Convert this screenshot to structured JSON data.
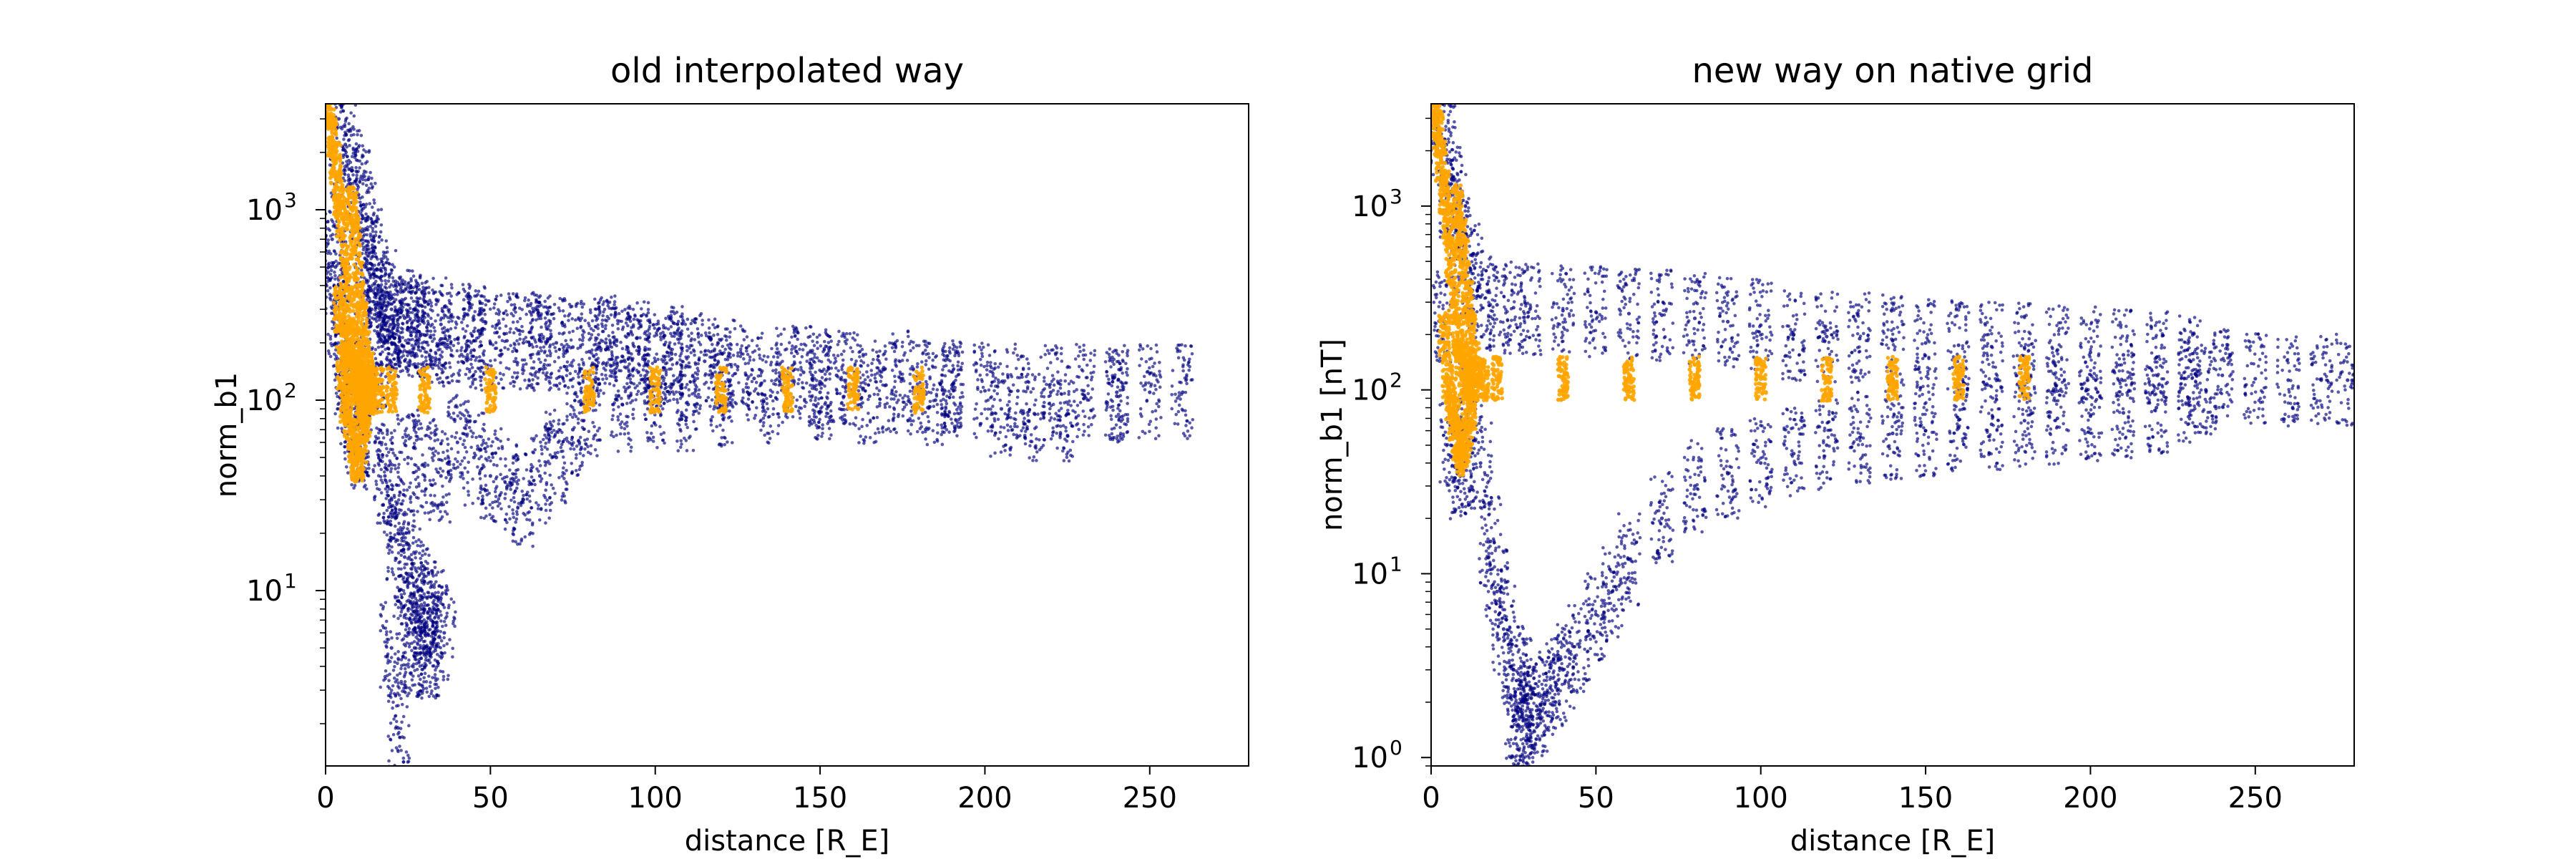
{
  "chart_data": [
    {
      "type": "scatter",
      "title": "old interpolated way",
      "xlabel": "distance [R_E]",
      "ylabel": "norm_b1",
      "xlim": [
        0,
        280
      ],
      "ylim": [
        1.2,
        3600
      ],
      "yscale": "log",
      "x_ticks": [
        0,
        50,
        100,
        150,
        200,
        250
      ],
      "y_ticks": [
        {
          "base": "10",
          "exp": "1",
          "value": 10
        },
        {
          "base": "10",
          "exp": "2",
          "value": 100
        },
        {
          "base": "10",
          "exp": "3",
          "value": 1000
        }
      ],
      "grid": false,
      "legend": "none",
      "series": [
        {
          "color": "#000080",
          "marker": "small dots",
          "points": [
            [
              2,
              700
            ],
            [
              3,
              500
            ],
            [
              4,
              300
            ],
            [
              5,
              200
            ],
            [
              6,
              150
            ],
            [
              7,
              120
            ],
            [
              8,
              90
            ],
            [
              9,
              70
            ],
            [
              10,
              60
            ],
            [
              12,
              500
            ],
            [
              14,
              300
            ],
            [
              16,
              220
            ],
            [
              18,
              200
            ],
            [
              20,
              230
            ],
            [
              22,
              250
            ],
            [
              25,
              240
            ],
            [
              28,
              230
            ],
            [
              30,
              220
            ],
            [
              35,
              210
            ],
            [
              40,
              210
            ],
            [
              45,
              205
            ],
            [
              50,
              200
            ],
            [
              55,
              205
            ],
            [
              60,
              200
            ],
            [
              65,
              205
            ],
            [
              70,
              200
            ],
            [
              75,
              190
            ],
            [
              80,
              180
            ],
            [
              85,
              185
            ],
            [
              90,
              170
            ],
            [
              95,
              175
            ],
            [
              100,
              160
            ],
            [
              105,
              165
            ],
            [
              110,
              150
            ],
            [
              120,
              140
            ],
            [
              130,
              130
            ],
            [
              140,
              135
            ],
            [
              150,
              125
            ],
            [
              160,
              130
            ],
            [
              170,
              120
            ],
            [
              180,
              118
            ],
            [
              190,
              115
            ],
            [
              200,
              112
            ],
            [
              210,
              112
            ],
            [
              220,
              110
            ],
            [
              230,
              112
            ],
            [
              240,
              110
            ],
            [
              250,
              110
            ],
            [
              260,
              110
            ],
            [
              15,
              60
            ],
            [
              18,
              40
            ],
            [
              20,
              30
            ],
            [
              22,
              20
            ],
            [
              24,
              15
            ],
            [
              26,
              12
            ],
            [
              28,
              10
            ],
            [
              30,
              8
            ],
            [
              32,
              7
            ],
            [
              25,
              50
            ],
            [
              30,
              45
            ],
            [
              35,
              40
            ],
            [
              40,
              60
            ],
            [
              45,
              50
            ],
            [
              50,
              40
            ],
            [
              55,
              35
            ],
            [
              60,
              30
            ],
            [
              65,
              40
            ],
            [
              70,
              50
            ],
            [
              75,
              70
            ],
            [
              80,
              90
            ],
            [
              90,
              95
            ],
            [
              100,
              100
            ],
            [
              20,
              5
            ],
            [
              25,
              6
            ],
            [
              30,
              5
            ],
            [
              33,
              8
            ],
            [
              36,
              6
            ],
            [
              22,
              1.9
            ],
            [
              27,
              5
            ],
            [
              31,
              4.7
            ],
            [
              110,
              95
            ],
            [
              120,
              100
            ],
            [
              135,
              105
            ],
            [
              150,
              110
            ],
            [
              165,
              105
            ],
            [
              185,
              100
            ],
            [
              205,
              90
            ],
            [
              215,
              85
            ],
            [
              225,
              85
            ],
            [
              240,
              105
            ],
            [
              190,
              120
            ],
            [
              175,
              130
            ],
            [
              155,
              135
            ],
            [
              145,
              140
            ],
            [
              125,
              150
            ],
            [
              115,
              160
            ],
            [
              105,
              175
            ],
            [
              95,
              190
            ],
            [
              85,
              200
            ],
            [
              65,
              210
            ],
            [
              45,
              230
            ],
            [
              35,
              250
            ],
            [
              28,
              260
            ],
            [
              24,
              270
            ],
            [
              20,
              300
            ],
            [
              18,
              350
            ],
            [
              16,
              400
            ],
            [
              14,
              600
            ],
            [
              12,
              900
            ],
            [
              10,
              1200
            ],
            [
              8,
              1600
            ],
            [
              6,
              2200
            ],
            [
              4,
              3000
            ]
          ]
        },
        {
          "color": "#FFA500",
          "marker": "small dots",
          "points": [
            [
              1,
              3500
            ],
            [
              2,
              2400
            ],
            [
              3,
              1800
            ],
            [
              4,
              1200
            ],
            [
              5,
              900
            ],
            [
              6,
              500
            ],
            [
              7,
              300
            ],
            [
              8,
              200
            ],
            [
              9,
              150
            ],
            [
              10,
              110
            ],
            [
              11,
              100
            ],
            [
              12,
              105
            ],
            [
              13,
              110
            ],
            [
              14,
              112
            ],
            [
              16,
              113
            ],
            [
              20,
              113
            ],
            [
              30,
              113
            ],
            [
              50,
              113
            ],
            [
              80,
              113
            ],
            [
              100,
              113
            ],
            [
              120,
              113
            ],
            [
              140,
              113
            ],
            [
              160,
              113
            ],
            [
              180,
              113
            ],
            [
              4,
              300
            ],
            [
              5,
              150
            ],
            [
              6,
              100
            ],
            [
              7,
              80
            ],
            [
              8,
              60
            ],
            [
              9,
              50
            ],
            [
              10,
              48
            ],
            [
              11,
              60
            ],
            [
              12,
              80
            ],
            [
              6,
              200
            ],
            [
              7,
              160
            ],
            [
              8,
              140
            ],
            [
              9,
              130
            ],
            [
              10,
              125
            ],
            [
              11,
              120
            ],
            [
              12,
              118
            ],
            [
              8,
              1000
            ],
            [
              9,
              700
            ],
            [
              10,
              400
            ],
            [
              11,
              250
            ],
            [
              12,
              180
            ],
            [
              13,
              140
            ]
          ]
        }
      ]
    },
    {
      "type": "scatter",
      "title": "new way on native grid",
      "xlabel": "distance [R_E]",
      "ylabel": "norm_b1 [nT]",
      "xlim": [
        0,
        280
      ],
      "ylim": [
        0.9,
        3600
      ],
      "yscale": "log",
      "x_ticks": [
        0,
        50,
        100,
        150,
        200,
        250
      ],
      "y_ticks": [
        {
          "base": "10",
          "exp": "0",
          "value": 1
        },
        {
          "base": "10",
          "exp": "1",
          "value": 10
        },
        {
          "base": "10",
          "exp": "2",
          "value": 100
        },
        {
          "base": "10",
          "exp": "3",
          "value": 1000
        }
      ],
      "grid": false,
      "legend": "none",
      "series": [
        {
          "color": "#000080",
          "marker": "small dots",
          "points": [
            [
              2,
              3000
            ],
            [
              4,
              2000
            ],
            [
              6,
              1200
            ],
            [
              8,
              900
            ],
            [
              10,
              600
            ],
            [
              12,
              450
            ],
            [
              15,
              320
            ],
            [
              20,
              290
            ],
            [
              25,
              280
            ],
            [
              30,
              275
            ],
            [
              40,
              270
            ],
            [
              50,
              265
            ],
            [
              60,
              260
            ],
            [
              70,
              255
            ],
            [
              80,
              245
            ],
            [
              90,
              235
            ],
            [
              100,
              225
            ],
            [
              110,
              200
            ],
            [
              120,
              195
            ],
            [
              130,
              190
            ],
            [
              140,
              185
            ],
            [
              150,
              180
            ],
            [
              160,
              175
            ],
            [
              170,
              172
            ],
            [
              180,
              170
            ],
            [
              190,
              165
            ],
            [
              200,
              160
            ],
            [
              210,
              155
            ],
            [
              220,
              150
            ],
            [
              230,
              145
            ],
            [
              240,
              120
            ],
            [
              250,
              115
            ],
            [
              260,
              113
            ],
            [
              270,
              113
            ],
            [
              278,
              113
            ],
            [
              12,
              80
            ],
            [
              15,
              40
            ],
            [
              18,
              15
            ],
            [
              20,
              8
            ],
            [
              22,
              5
            ],
            [
              25,
              3
            ],
            [
              28,
              2
            ],
            [
              30,
              1.5
            ],
            [
              32,
              1.8
            ],
            [
              35,
              2.2
            ],
            [
              38,
              2.5
            ],
            [
              40,
              3
            ],
            [
              45,
              4
            ],
            [
              50,
              6
            ],
            [
              55,
              8
            ],
            [
              60,
              12
            ],
            [
              70,
              20
            ],
            [
              80,
              30
            ],
            [
              90,
              35
            ],
            [
              100,
              40
            ],
            [
              110,
              45
            ],
            [
              120,
              50
            ],
            [
              130,
              55
            ],
            [
              140,
              58
            ],
            [
              150,
              60
            ],
            [
              160,
              62
            ],
            [
              170,
              65
            ],
            [
              180,
              68
            ],
            [
              190,
              70
            ],
            [
              200,
              72
            ],
            [
              210,
              75
            ],
            [
              220,
              80
            ],
            [
              230,
              90
            ],
            [
              235,
              100
            ],
            [
              10,
              40
            ],
            [
              8,
              35
            ],
            [
              6,
              50
            ],
            [
              4,
              250
            ],
            [
              26,
              1.4
            ],
            [
              29,
              1.3
            ],
            [
              27,
              2.6
            ]
          ]
        },
        {
          "color": "#FFA500",
          "marker": "small dots",
          "points": [
            [
              1,
              3500
            ],
            [
              2,
              2500
            ],
            [
              3,
              1800
            ],
            [
              4,
              1200
            ],
            [
              5,
              800
            ],
            [
              6,
              500
            ],
            [
              7,
              300
            ],
            [
              8,
              200
            ],
            [
              9,
              150
            ],
            [
              10,
              120
            ],
            [
              11,
              110
            ],
            [
              12,
              112
            ],
            [
              14,
              114
            ],
            [
              16,
              115
            ],
            [
              20,
              115
            ],
            [
              40,
              115
            ],
            [
              60,
              115
            ],
            [
              80,
              115
            ],
            [
              100,
              115
            ],
            [
              120,
              115
            ],
            [
              140,
              115
            ],
            [
              160,
              115
            ],
            [
              180,
              115
            ],
            [
              4,
              200
            ],
            [
              5,
              120
            ],
            [
              6,
              90
            ],
            [
              7,
              70
            ],
            [
              8,
              55
            ],
            [
              9,
              45
            ],
            [
              10,
              50
            ],
            [
              11,
              60
            ],
            [
              12,
              80
            ],
            [
              8,
              1000
            ],
            [
              9,
              700
            ],
            [
              10,
              500
            ],
            [
              11,
              300
            ],
            [
              12,
              200
            ],
            [
              13,
              140
            ]
          ]
        }
      ]
    }
  ]
}
